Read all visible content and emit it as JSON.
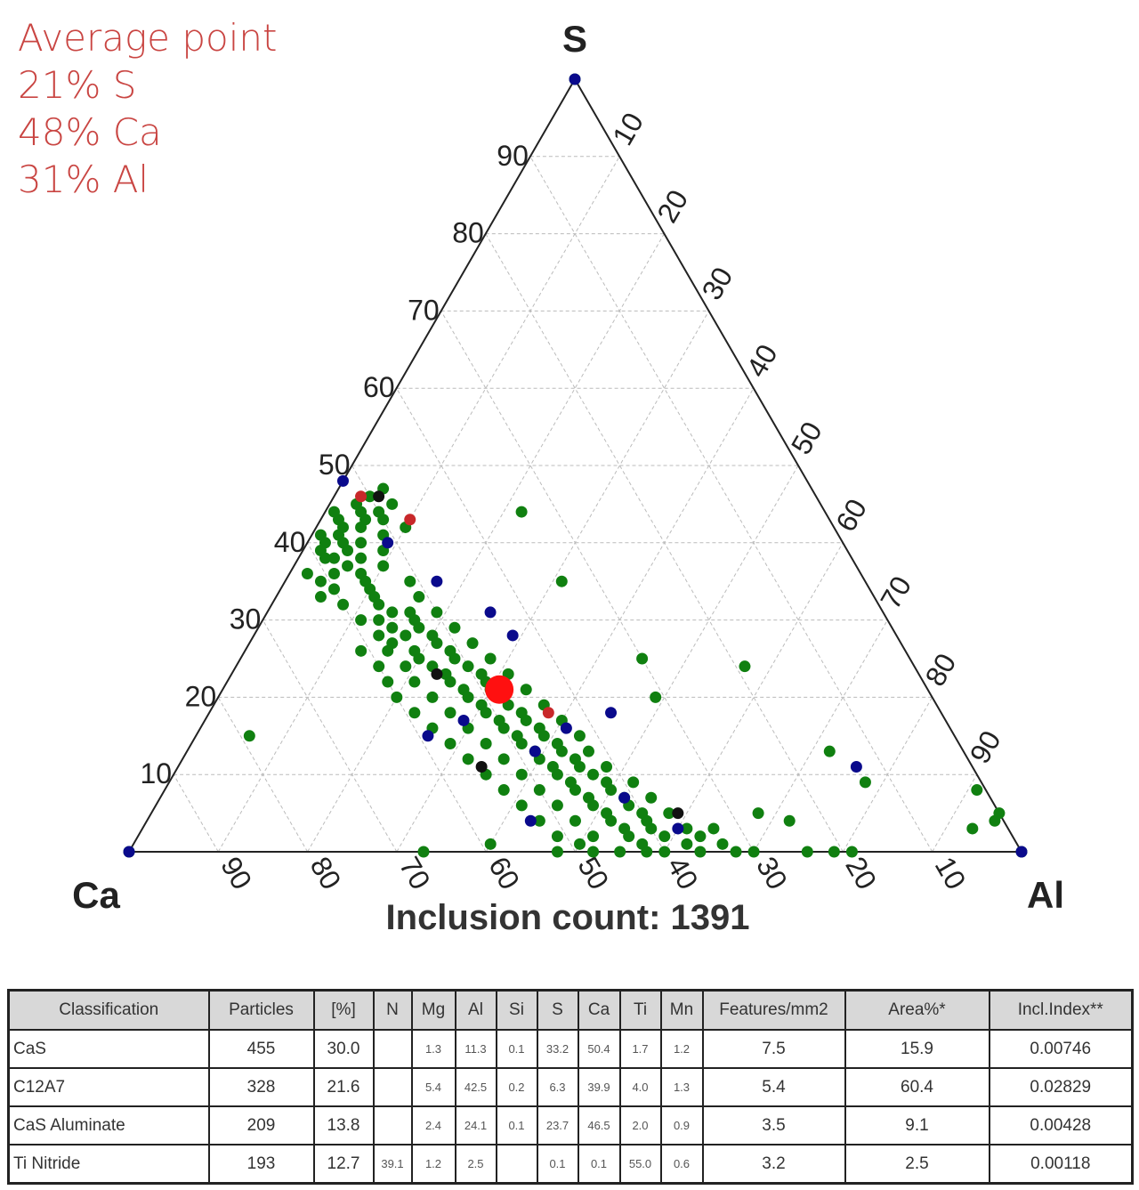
{
  "average": {
    "title": "Average point",
    "s": "21% S",
    "ca": "48% Ca",
    "al": "31% Al"
  },
  "chart_data": {
    "type": "scatter",
    "subtype": "ternary",
    "vertices": {
      "top": "S",
      "left": "Ca",
      "right": "Al"
    },
    "ticks": [
      "10",
      "20",
      "30",
      "40",
      "50",
      "60",
      "70",
      "80",
      "90"
    ],
    "title": "Inclusion count: 1391",
    "grid": true,
    "point_format": "[S%, Al%] (Ca% = 100 - S - Al)",
    "series": [
      {
        "color": "#108010",
        "points": [
          [
            100,
            0
          ],
          [
            0,
            0
          ],
          [
            0,
            100
          ],
          [
            45,
            3
          ],
          [
            44,
            4
          ],
          [
            43,
            2
          ],
          [
            42,
            5
          ],
          [
            46,
            4
          ],
          [
            41,
            3
          ],
          [
            40,
            6
          ],
          [
            44,
            6
          ],
          [
            42,
            3
          ],
          [
            39,
            5
          ],
          [
            38,
            7
          ],
          [
            43,
            7
          ],
          [
            40,
            2
          ],
          [
            37,
            6
          ],
          [
            36,
            8
          ],
          [
            41,
            8
          ],
          [
            35,
            9
          ],
          [
            38,
            4
          ],
          [
            47,
            5
          ],
          [
            45,
            7
          ],
          [
            39,
            9
          ],
          [
            34,
            10
          ],
          [
            36,
            5
          ],
          [
            33,
            11
          ],
          [
            42,
            10
          ],
          [
            37,
            10
          ],
          [
            44,
            1
          ],
          [
            43,
            5
          ],
          [
            41,
            1
          ],
          [
            40,
            4
          ],
          [
            39,
            2
          ],
          [
            38,
            3
          ],
          [
            36,
            2
          ],
          [
            35,
            4
          ],
          [
            34,
            6
          ],
          [
            32,
            8
          ],
          [
            33,
            5
          ],
          [
            32,
            12
          ],
          [
            31,
            14
          ],
          [
            30,
            13
          ],
          [
            29,
            15
          ],
          [
            28,
            17
          ],
          [
            30,
            17
          ],
          [
            27,
            16
          ],
          [
            26,
            19
          ],
          [
            28,
            20
          ],
          [
            25,
            20
          ],
          [
            24,
            22
          ],
          [
            26,
            23
          ],
          [
            23,
            24
          ],
          [
            22,
            25
          ],
          [
            24,
            26
          ],
          [
            21,
            27
          ],
          [
            20,
            28
          ],
          [
            22,
            29
          ],
          [
            19,
            30
          ],
          [
            18,
            31
          ],
          [
            20,
            32
          ],
          [
            17,
            33
          ],
          [
            16,
            34
          ],
          [
            18,
            35
          ],
          [
            15,
            36
          ],
          [
            14,
            37
          ],
          [
            16,
            38
          ],
          [
            13,
            39
          ],
          [
            12,
            40
          ],
          [
            14,
            41
          ],
          [
            11,
            42
          ],
          [
            10,
            43
          ],
          [
            12,
            44
          ],
          [
            9,
            45
          ],
          [
            8,
            46
          ],
          [
            10,
            47
          ],
          [
            7,
            48
          ],
          [
            6,
            49
          ],
          [
            8,
            50
          ],
          [
            5,
            51
          ],
          [
            4,
            52
          ],
          [
            6,
            53
          ],
          [
            3,
            54
          ],
          [
            2,
            55
          ],
          [
            4,
            56
          ],
          [
            1,
            57
          ],
          [
            0,
            58
          ],
          [
            2,
            59
          ],
          [
            0,
            60
          ],
          [
            1,
            62
          ],
          [
            0,
            64
          ],
          [
            3,
            61
          ],
          [
            5,
            58
          ],
          [
            0,
            52
          ],
          [
            0,
            48
          ],
          [
            1,
            50
          ],
          [
            7,
            55
          ],
          [
            9,
            52
          ],
          [
            11,
            48
          ],
          [
            13,
            45
          ],
          [
            15,
            43
          ],
          [
            17,
            40
          ],
          [
            19,
            37
          ],
          [
            21,
            34
          ],
          [
            23,
            31
          ],
          [
            25,
            28
          ],
          [
            27,
            25
          ],
          [
            29,
            22
          ],
          [
            31,
            19
          ],
          [
            33,
            16
          ],
          [
            35,
            14
          ],
          [
            26,
            13
          ],
          [
            24,
            16
          ],
          [
            22,
            18
          ],
          [
            20,
            20
          ],
          [
            18,
            23
          ],
          [
            16,
            26
          ],
          [
            14,
            29
          ],
          [
            12,
            32
          ],
          [
            10,
            35
          ],
          [
            8,
            38
          ],
          [
            6,
            41
          ],
          [
            4,
            44
          ],
          [
            2,
            47
          ],
          [
            30,
            11
          ],
          [
            28,
            14
          ],
          [
            26,
            16
          ],
          [
            24,
            19
          ],
          [
            22,
            21
          ],
          [
            20,
            24
          ],
          [
            18,
            27
          ],
          [
            16,
            30
          ],
          [
            14,
            33
          ],
          [
            12,
            36
          ],
          [
            10,
            39
          ],
          [
            8,
            42
          ],
          [
            6,
            45
          ],
          [
            4,
            48
          ],
          [
            2,
            51
          ],
          [
            0,
            55
          ],
          [
            3,
            57
          ],
          [
            5,
            55
          ],
          [
            7,
            52
          ],
          [
            9,
            49
          ],
          [
            11,
            45
          ],
          [
            13,
            42
          ],
          [
            15,
            39
          ],
          [
            17,
            36
          ],
          [
            19,
            33
          ],
          [
            21,
            30
          ],
          [
            23,
            28
          ],
          [
            25,
            24
          ],
          [
            27,
            21
          ],
          [
            29,
            18
          ],
          [
            31,
            16
          ],
          [
            2,
            63
          ],
          [
            1,
            66
          ],
          [
            0,
            68
          ],
          [
            0,
            70
          ],
          [
            3,
            64
          ],
          [
            44,
            22
          ],
          [
            35,
            31
          ],
          [
            25,
            45
          ],
          [
            24,
            57
          ],
          [
            20,
            49
          ],
          [
            15,
            6
          ],
          [
            13,
            72
          ],
          [
            9,
            78
          ],
          [
            8,
            91
          ],
          [
            5,
            95
          ],
          [
            4,
            95
          ],
          [
            3,
            93
          ],
          [
            4,
            72
          ],
          [
            0,
            76
          ],
          [
            0,
            79
          ],
          [
            0,
            81
          ],
          [
            5,
            68
          ],
          [
            0,
            33
          ],
          [
            1,
            40
          ]
        ]
      },
      {
        "color": "#0a0a8c",
        "points": [
          [
            48,
            0
          ],
          [
            35,
            17
          ],
          [
            31,
            25
          ],
          [
            28,
            29
          ],
          [
            18,
            45
          ],
          [
            16,
            41
          ],
          [
            15,
            26
          ],
          [
            13,
            39
          ],
          [
            11,
            76
          ],
          [
            7,
            52
          ],
          [
            4,
            43
          ],
          [
            3,
            60
          ],
          [
            0,
            100
          ],
          [
            17,
            29
          ],
          [
            40,
            9
          ],
          [
            0,
            0
          ],
          [
            100,
            0
          ]
        ]
      },
      {
        "color": "#111111",
        "points": [
          [
            46,
            5
          ],
          [
            23,
            23
          ],
          [
            11,
            34
          ],
          [
            5,
            59
          ]
        ]
      },
      {
        "color": "#c8282a",
        "points": [
          [
            46,
            3
          ],
          [
            43,
            10
          ],
          [
            18,
            38
          ]
        ]
      }
    ],
    "average_point": {
      "s": 21,
      "ca": 48,
      "al": 31,
      "color": "#ff1010"
    }
  },
  "table": {
    "headers": [
      "Classification",
      "Particles",
      "[%]",
      "N",
      "Mg",
      "Al",
      "Si",
      "S",
      "Ca",
      "Ti",
      "Mn",
      "Features/mm2",
      "Area%*",
      "Incl.Index**"
    ],
    "rows": [
      [
        "CaS",
        "455",
        "30.0",
        "",
        "1.3",
        "11.3",
        "0.1",
        "33.2",
        "50.4",
        "1.7",
        "1.2",
        "7.5",
        "15.9",
        "0.00746"
      ],
      [
        "C12A7",
        "328",
        "21.6",
        "",
        "5.4",
        "42.5",
        "0.2",
        "6.3",
        "39.9",
        "4.0",
        "1.3",
        "5.4",
        "60.4",
        "0.02829"
      ],
      [
        "CaS Aluminate",
        "209",
        "13.8",
        "",
        "2.4",
        "24.1",
        "0.1",
        "23.7",
        "46.5",
        "2.0",
        "0.9",
        "3.5",
        "9.1",
        "0.00428"
      ],
      [
        "Ti Nitride",
        "193",
        "12.7",
        "39.1",
        "1.2",
        "2.5",
        "",
        "0.1",
        "0.1",
        "55.0",
        "0.6",
        "3.2",
        "2.5",
        "0.00118"
      ]
    ]
  }
}
